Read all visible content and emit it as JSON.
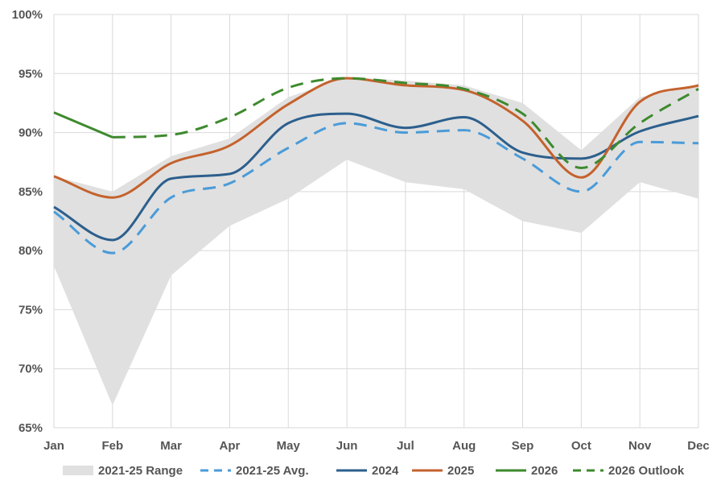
{
  "chart_data": {
    "type": "line",
    "categories": [
      "Jan",
      "Feb",
      "Mar",
      "Apr",
      "May",
      "Jun",
      "Jul",
      "Aug",
      "Sep",
      "Oct",
      "Nov",
      "Dec"
    ],
    "ylim": [
      65,
      100
    ],
    "yticks": [
      65,
      70,
      75,
      80,
      85,
      90,
      95,
      100
    ],
    "ytick_labels": [
      "65%",
      "70%",
      "75%",
      "80%",
      "85%",
      "90%",
      "95%",
      "100%"
    ],
    "grid": true,
    "legend_position": "bottom",
    "range_band": {
      "name": "2021-25 Range",
      "color": "#e0e0e0",
      "low": [
        78.7,
        66.9,
        77.9,
        82.1,
        84.4,
        87.7,
        85.8,
        85.2,
        82.5,
        81.5,
        85.8,
        84.4
      ],
      "high": [
        86.3,
        85.0,
        88.0,
        89.5,
        93.0,
        94.7,
        94.4,
        94.0,
        92.5,
        88.5,
        93.0,
        94.0
      ]
    },
    "series": [
      {
        "name": "2021-25 Avg.",
        "color": "#4a9bd8",
        "dash": "dashed",
        "values": [
          83.3,
          79.8,
          84.5,
          85.7,
          88.7,
          90.8,
          90.0,
          90.2,
          87.8,
          85.0,
          89.2,
          89.1
        ]
      },
      {
        "name": "2024",
        "color": "#2c5f8d",
        "dash": "solid",
        "values": [
          83.7,
          80.9,
          86.1,
          86.5,
          90.8,
          91.6,
          90.4,
          91.3,
          88.3,
          87.8,
          90.1,
          91.4
        ]
      },
      {
        "name": "2025",
        "color": "#c4622d",
        "dash": "solid",
        "values": [
          86.3,
          84.5,
          87.4,
          88.9,
          92.4,
          94.6,
          94.0,
          93.6,
          91.0,
          86.2,
          92.6,
          94.0
        ]
      },
      {
        "name": "2026",
        "color": "#3e8a2e",
        "dash": "solid",
        "values": [
          91.7,
          89.6,
          null,
          null,
          null,
          null,
          null,
          null,
          null,
          null,
          null,
          null
        ]
      },
      {
        "name": "2026 Outlook",
        "color": "#3e8a2e",
        "dash": "dashed",
        "values": [
          null,
          89.6,
          89.8,
          91.3,
          93.8,
          94.6,
          94.2,
          93.7,
          91.6,
          87.0,
          90.8,
          93.7
        ]
      }
    ]
  }
}
